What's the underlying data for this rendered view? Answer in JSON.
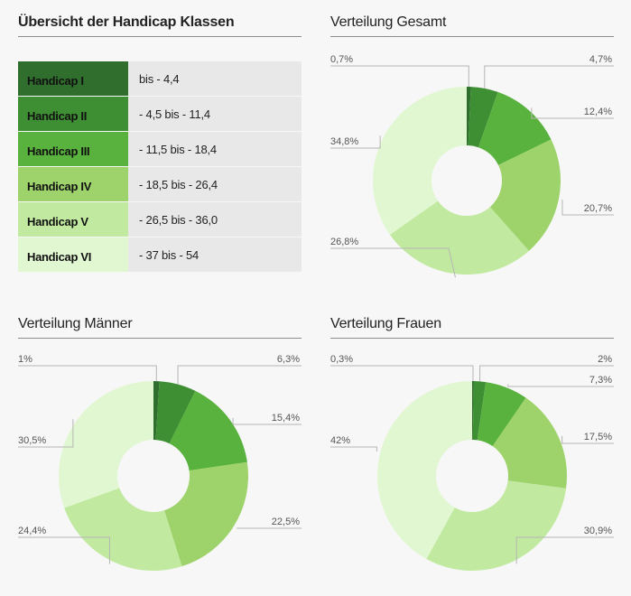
{
  "table_panel": {
    "title": "Übersicht der Handicap Klassen",
    "rows": [
      {
        "class": "Handicap I",
        "range": "bis - 4,4",
        "color": "#2f6e2d"
      },
      {
        "class": "Handicap II",
        "range": "- 4,5 bis - 11,4",
        "color": "#3e8f33"
      },
      {
        "class": "Handicap III",
        "range": "- 11,5 bis - 18,4",
        "color": "#58b23d"
      },
      {
        "class": "Handicap IV",
        "range": "- 18,5 bis - 26,4",
        "color": "#9ed36b"
      },
      {
        "class": "Handicap V",
        "range": "- 26,5 bis - 36,0",
        "color": "#c1eaa0"
      },
      {
        "class": "Handicap VI",
        "range": "- 37 bis - 54",
        "color": "#e1f7d1"
      }
    ]
  },
  "chart_data": [
    {
      "type": "pie",
      "title": "Verteilung Gesamt",
      "categories": [
        "Handicap I",
        "Handicap II",
        "Handicap III",
        "Handicap IV",
        "Handicap V",
        "Handicap VI"
      ],
      "values": [
        0.7,
        4.7,
        12.4,
        20.7,
        26.8,
        34.8
      ],
      "labels": [
        "0,7%",
        "4,7%",
        "12,4%",
        "20,7%",
        "26,8%",
        "34,8%"
      ]
    },
    {
      "type": "pie",
      "title": "Verteilung Männer",
      "categories": [
        "Handicap I",
        "Handicap II",
        "Handicap III",
        "Handicap IV",
        "Handicap V",
        "Handicap VI"
      ],
      "values": [
        1,
        6.3,
        15.4,
        22.5,
        24.4,
        30.5
      ],
      "labels": [
        "1%",
        "6,3%",
        "15,4%",
        "22,5%",
        "24,4%",
        "30,5%"
      ]
    },
    {
      "type": "pie",
      "title": "Verteilung Frauen",
      "categories": [
        "Handicap I",
        "Handicap II",
        "Handicap III",
        "Handicap IV",
        "Handicap V",
        "Handicap VI"
      ],
      "values": [
        0.3,
        2,
        7.3,
        17.5,
        30.9,
        42
      ],
      "labels": [
        "0,3%",
        "2%",
        "7,3%",
        "17,5%",
        "30,9%",
        "42%"
      ]
    }
  ],
  "colors": {
    "slices": [
      "#2f6e2d",
      "#3e8f33",
      "#58b23d",
      "#9ed36b",
      "#c1eaa0",
      "#e1f7d1"
    ],
    "leader": "#b5b5b5",
    "label": "#555555"
  }
}
